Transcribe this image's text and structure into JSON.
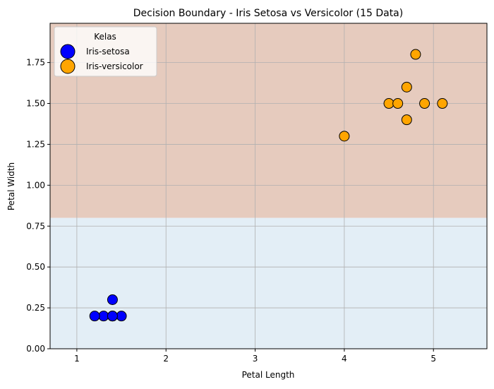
{
  "chart_data": {
    "type": "scatter",
    "title": "Decision Boundary - Iris Setosa vs Versicolor (15 Data)",
    "xlabel": "Petal Length",
    "ylabel": "Petal Width",
    "xlim": [
      0.7,
      5.6
    ],
    "ylim": [
      0.0,
      1.99
    ],
    "x_ticks": [
      1,
      2,
      3,
      4,
      5
    ],
    "y_ticks": [
      0.0,
      0.25,
      0.5,
      0.75,
      1.0,
      1.25,
      1.5,
      1.75
    ],
    "grid": true,
    "legend": {
      "title": "Kelas",
      "placement": "top-left"
    },
    "decision_boundary": {
      "orientation": "horizontal",
      "y": 0.8,
      "below_region_color": "#e3eef6",
      "above_region_color": "#e6cbbe"
    },
    "series": [
      {
        "name": "Iris-setosa",
        "color": "#0000ff",
        "points": [
          {
            "x": 1.4,
            "y": 0.2
          },
          {
            "x": 1.4,
            "y": 0.2
          },
          {
            "x": 1.3,
            "y": 0.2
          },
          {
            "x": 1.5,
            "y": 0.2
          },
          {
            "x": 1.4,
            "y": 0.2
          },
          {
            "x": 1.2,
            "y": 0.2
          },
          {
            "x": 1.4,
            "y": 0.3
          }
        ]
      },
      {
        "name": "Iris-versicolor",
        "color": "#ffa500",
        "points": [
          {
            "x": 4.7,
            "y": 1.4
          },
          {
            "x": 4.5,
            "y": 1.5
          },
          {
            "x": 4.9,
            "y": 1.5
          },
          {
            "x": 4.0,
            "y": 1.3
          },
          {
            "x": 4.6,
            "y": 1.5
          },
          {
            "x": 4.7,
            "y": 1.6
          },
          {
            "x": 4.8,
            "y": 1.8
          },
          {
            "x": 5.1,
            "y": 1.5
          }
        ]
      }
    ]
  }
}
